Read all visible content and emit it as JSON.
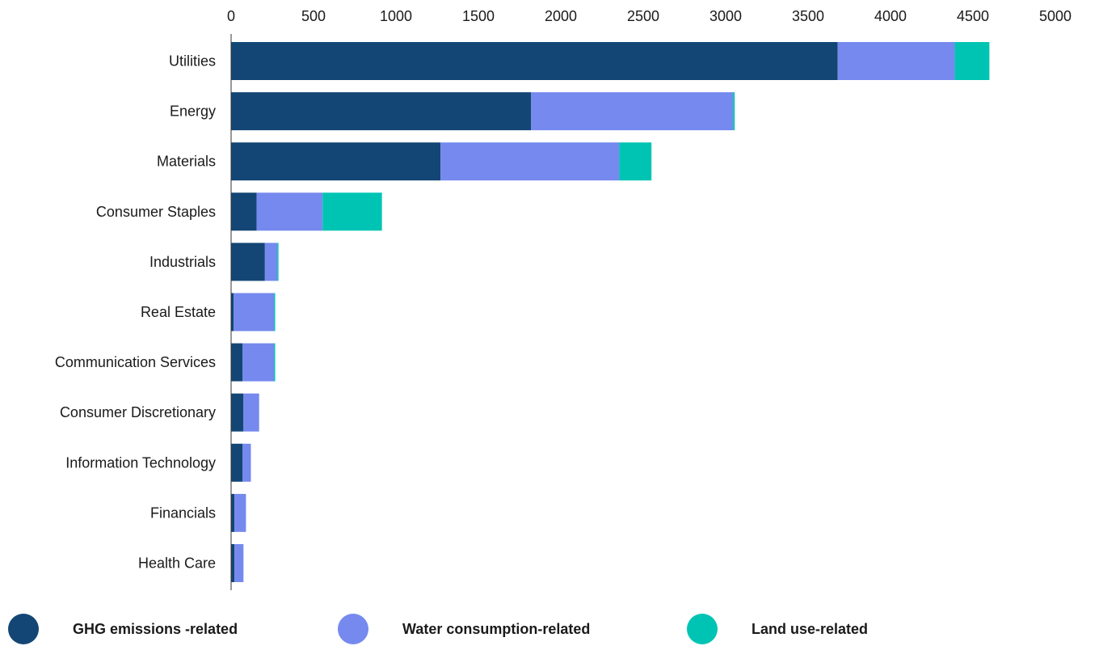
{
  "chart_data": {
    "type": "bar",
    "orientation": "horizontal",
    "stacked": true,
    "categories": [
      "Utilities",
      "Energy",
      "Materials",
      "Consumer Staples",
      "Industrials",
      "Real Estate",
      "Communication Services",
      "Consumer Discretionary",
      "Information Technology",
      "Financials",
      "Health Care"
    ],
    "series": [
      {
        "name": "GHG emissions -related",
        "color": "#134675",
        "values": [
          3680,
          1820,
          1270,
          155,
          205,
          15,
          70,
          75,
          70,
          20,
          20
        ]
      },
      {
        "name": "Water consumption-related",
        "color": "#7589ee",
        "values": [
          710,
          1225,
          1085,
          400,
          75,
          245,
          190,
          95,
          50,
          70,
          55
        ]
      },
      {
        "name": "Land use-related",
        "color": "#00c4b3",
        "values": [
          210,
          10,
          195,
          360,
          3,
          5,
          2,
          0,
          0,
          0,
          0
        ]
      }
    ],
    "xticks": [
      "0",
      "500",
      "1000",
      "1500",
      "2000",
      "2500",
      "3000",
      "3500",
      "4000",
      "4500",
      "5000"
    ],
    "xlim": [
      0,
      5000
    ],
    "xaxis_position": "top",
    "grid": false,
    "legend_position": "bottom",
    "title": "",
    "xlabel": "",
    "ylabel": ""
  }
}
